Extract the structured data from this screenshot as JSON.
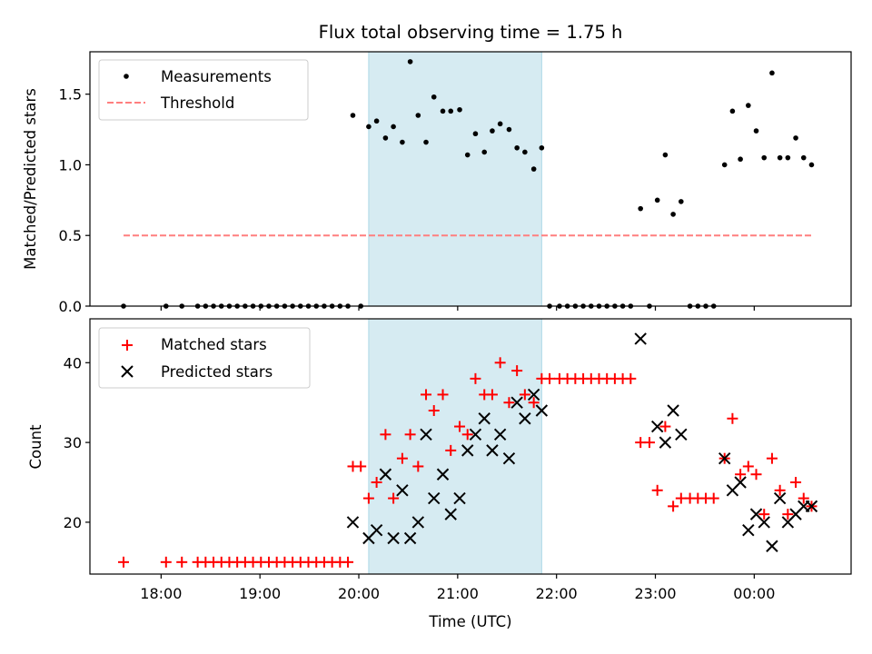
{
  "chart_data": {
    "title": "Flux total observing time = 1.75 h",
    "xlabel": "Time (UTC)",
    "x_unit": "hours UTC (values after 24 are past midnight)",
    "xlim": [
      17.28,
      24.98
    ],
    "xticks": [
      {
        "value": 18,
        "label": "18:00"
      },
      {
        "value": 19,
        "label": "19:00"
      },
      {
        "value": 20,
        "label": "20:00"
      },
      {
        "value": 21,
        "label": "21:00"
      },
      {
        "value": 22,
        "label": "22:00"
      },
      {
        "value": 23,
        "label": "23:00"
      },
      {
        "value": 24,
        "label": "00:00"
      }
    ],
    "highlight_span": {
      "start": 20.1,
      "end": 21.85,
      "color": "#add8e6"
    },
    "panels": [
      {
        "type": "scatter",
        "ylabel": "Matched/Predicted stars",
        "ylim": [
          0,
          1.8
        ],
        "yticks": [
          0,
          0.5,
          1.0,
          1.5
        ],
        "ytick_labels": [
          "0.0",
          "0.5",
          "1.0",
          "1.5"
        ],
        "legend": {
          "position": "top-left"
        },
        "series": [
          {
            "name": "Measurements",
            "marker": "dot",
            "color": "#000000",
            "points": [
              [
                17.62,
                0
              ],
              [
                18.05,
                0
              ],
              [
                18.21,
                0
              ],
              [
                18.37,
                0
              ],
              [
                18.45,
                0
              ],
              [
                18.53,
                0
              ],
              [
                18.61,
                0
              ],
              [
                18.69,
                0
              ],
              [
                18.77,
                0
              ],
              [
                18.85,
                0
              ],
              [
                18.93,
                0
              ],
              [
                19.01,
                0
              ],
              [
                19.09,
                0
              ],
              [
                19.17,
                0
              ],
              [
                19.25,
                0
              ],
              [
                19.33,
                0
              ],
              [
                19.41,
                0
              ],
              [
                19.49,
                0
              ],
              [
                19.57,
                0
              ],
              [
                19.65,
                0
              ],
              [
                19.73,
                0
              ],
              [
                19.81,
                0
              ],
              [
                19.89,
                0
              ],
              [
                19.94,
                1.35
              ],
              [
                20.02,
                0
              ],
              [
                20.1,
                1.27
              ],
              [
                20.18,
                1.31
              ],
              [
                20.27,
                1.19
              ],
              [
                20.35,
                1.27
              ],
              [
                20.44,
                1.16
              ],
              [
                20.52,
                1.73
              ],
              [
                20.6,
                1.35
              ],
              [
                20.68,
                1.16
              ],
              [
                20.76,
                1.48
              ],
              [
                20.85,
                1.38
              ],
              [
                20.93,
                1.38
              ],
              [
                21.02,
                1.39
              ],
              [
                21.1,
                1.07
              ],
              [
                21.18,
                1.22
              ],
              [
                21.27,
                1.09
              ],
              [
                21.35,
                1.24
              ],
              [
                21.43,
                1.29
              ],
              [
                21.52,
                1.25
              ],
              [
                21.6,
                1.12
              ],
              [
                21.68,
                1.09
              ],
              [
                21.77,
                0.97
              ],
              [
                21.85,
                1.12
              ],
              [
                21.93,
                0
              ],
              [
                22.03,
                0
              ],
              [
                22.11,
                0
              ],
              [
                22.19,
                0
              ],
              [
                22.27,
                0
              ],
              [
                22.35,
                0
              ],
              [
                22.43,
                0
              ],
              [
                22.51,
                0
              ],
              [
                22.59,
                0
              ],
              [
                22.67,
                0
              ],
              [
                22.75,
                0
              ],
              [
                22.85,
                0.69
              ],
              [
                22.94,
                0
              ],
              [
                23.02,
                0.75
              ],
              [
                23.1,
                1.07
              ],
              [
                23.18,
                0.65
              ],
              [
                23.26,
                0.74
              ],
              [
                23.35,
                0
              ],
              [
                23.43,
                0
              ],
              [
                23.51,
                0
              ],
              [
                23.59,
                0
              ],
              [
                23.7,
                1.0
              ],
              [
                23.78,
                1.38
              ],
              [
                23.86,
                1.04
              ],
              [
                23.94,
                1.42
              ],
              [
                24.02,
                1.24
              ],
              [
                24.1,
                1.05
              ],
              [
                24.18,
                1.65
              ],
              [
                24.26,
                1.05
              ],
              [
                24.34,
                1.05
              ],
              [
                24.42,
                1.19
              ],
              [
                24.5,
                1.05
              ],
              [
                24.58,
                1.0
              ]
            ]
          },
          {
            "name": "Threshold",
            "marker": "dashed-line",
            "color": "#ff7f7f",
            "x_range": [
              17.62,
              24.58
            ],
            "y": 0.5
          }
        ]
      },
      {
        "type": "scatter",
        "ylabel": "Count",
        "ylim": [
          13.5,
          45.5
        ],
        "yticks": [
          20,
          30,
          40
        ],
        "ytick_labels": [
          "20",
          "30",
          "40"
        ],
        "legend": {
          "position": "top-left"
        },
        "series": [
          {
            "name": "Matched stars",
            "marker": "plus",
            "color": "#ff0000",
            "points": [
              [
                17.62,
                15
              ],
              [
                18.05,
                15
              ],
              [
                18.21,
                15
              ],
              [
                18.37,
                15
              ],
              [
                18.45,
                15
              ],
              [
                18.53,
                15
              ],
              [
                18.61,
                15
              ],
              [
                18.69,
                15
              ],
              [
                18.77,
                15
              ],
              [
                18.85,
                15
              ],
              [
                18.93,
                15
              ],
              [
                19.01,
                15
              ],
              [
                19.09,
                15
              ],
              [
                19.17,
                15
              ],
              [
                19.25,
                15
              ],
              [
                19.33,
                15
              ],
              [
                19.41,
                15
              ],
              [
                19.49,
                15
              ],
              [
                19.57,
                15
              ],
              [
                19.65,
                15
              ],
              [
                19.73,
                15
              ],
              [
                19.81,
                15
              ],
              [
                19.89,
                15
              ],
              [
                19.94,
                27
              ],
              [
                20.02,
                27
              ],
              [
                20.1,
                23
              ],
              [
                20.18,
                25
              ],
              [
                20.27,
                31
              ],
              [
                20.35,
                23
              ],
              [
                20.44,
                28
              ],
              [
                20.52,
                31
              ],
              [
                20.6,
                27
              ],
              [
                20.68,
                36
              ],
              [
                20.76,
                34
              ],
              [
                20.85,
                36
              ],
              [
                20.93,
                29
              ],
              [
                21.02,
                32
              ],
              [
                21.1,
                31
              ],
              [
                21.18,
                38
              ],
              [
                21.27,
                36
              ],
              [
                21.35,
                36
              ],
              [
                21.43,
                40
              ],
              [
                21.52,
                35
              ],
              [
                21.6,
                39
              ],
              [
                21.68,
                36
              ],
              [
                21.77,
                35
              ],
              [
                21.85,
                38
              ],
              [
                21.93,
                38
              ],
              [
                22.03,
                38
              ],
              [
                22.11,
                38
              ],
              [
                22.19,
                38
              ],
              [
                22.27,
                38
              ],
              [
                22.35,
                38
              ],
              [
                22.43,
                38
              ],
              [
                22.51,
                38
              ],
              [
                22.59,
                38
              ],
              [
                22.67,
                38
              ],
              [
                22.75,
                38
              ],
              [
                22.85,
                30
              ],
              [
                22.94,
                30
              ],
              [
                23.02,
                24
              ],
              [
                23.1,
                32
              ],
              [
                23.18,
                22
              ],
              [
                23.26,
                23
              ],
              [
                23.35,
                23
              ],
              [
                23.43,
                23
              ],
              [
                23.51,
                23
              ],
              [
                23.59,
                23
              ],
              [
                23.7,
                28
              ],
              [
                23.78,
                33
              ],
              [
                23.86,
                26
              ],
              [
                23.94,
                27
              ],
              [
                24.02,
                26
              ],
              [
                24.1,
                21
              ],
              [
                24.18,
                28
              ],
              [
                24.26,
                24
              ],
              [
                24.34,
                21
              ],
              [
                24.42,
                25
              ],
              [
                24.5,
                23
              ],
              [
                24.58,
                22
              ]
            ]
          },
          {
            "name": "Predicted stars",
            "marker": "x",
            "color": "#000000",
            "points": [
              [
                19.94,
                20
              ],
              [
                20.1,
                18
              ],
              [
                20.18,
                19
              ],
              [
                20.27,
                26
              ],
              [
                20.35,
                18
              ],
              [
                20.44,
                24
              ],
              [
                20.52,
                18
              ],
              [
                20.6,
                20
              ],
              [
                20.68,
                31
              ],
              [
                20.76,
                23
              ],
              [
                20.85,
                26
              ],
              [
                20.93,
                21
              ],
              [
                21.02,
                23
              ],
              [
                21.1,
                29
              ],
              [
                21.18,
                31
              ],
              [
                21.27,
                33
              ],
              [
                21.35,
                29
              ],
              [
                21.43,
                31
              ],
              [
                21.52,
                28
              ],
              [
                21.6,
                35
              ],
              [
                21.68,
                33
              ],
              [
                21.77,
                36
              ],
              [
                21.85,
                34
              ],
              [
                22.85,
                43
              ],
              [
                23.02,
                32
              ],
              [
                23.1,
                30
              ],
              [
                23.18,
                34
              ],
              [
                23.26,
                31
              ],
              [
                23.7,
                28
              ],
              [
                23.78,
                24
              ],
              [
                23.86,
                25
              ],
              [
                23.94,
                19
              ],
              [
                24.02,
                21
              ],
              [
                24.1,
                20
              ],
              [
                24.18,
                17
              ],
              [
                24.26,
                23
              ],
              [
                24.34,
                20
              ],
              [
                24.42,
                21
              ],
              [
                24.5,
                22
              ],
              [
                24.58,
                22
              ]
            ]
          }
        ]
      }
    ]
  }
}
